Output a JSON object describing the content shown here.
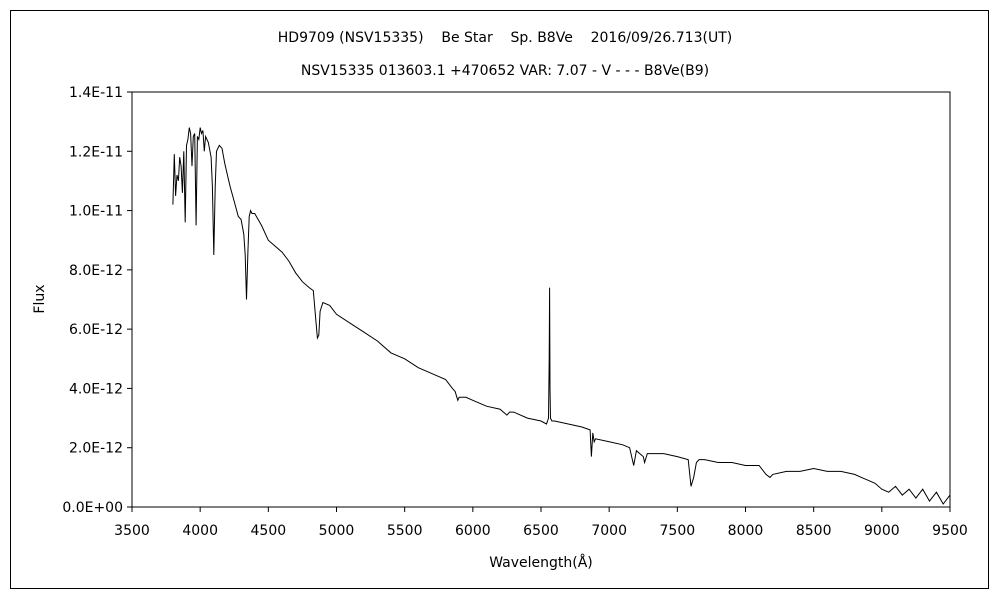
{
  "chart_data": {
    "type": "line",
    "title": "HD9709 (NSV15335)    Be Star    Sp. B8Ve    2016/09/26.713(UT)",
    "subtitle": "NSV15335 013603.1 +470652 VAR: 7.07 - V - - - B8Ve(B9)",
    "xlabel": "Wavelength(Å)",
    "ylabel": "Flux",
    "xlim": [
      3500,
      9500
    ],
    "ylim": [
      0,
      1.4e-11
    ],
    "xticks": [
      "3500",
      "4000",
      "4500",
      "5000",
      "5500",
      "6000",
      "6500",
      "7000",
      "7500",
      "8000",
      "8500",
      "9000",
      "9500"
    ],
    "yticks": [
      "0.0E+00",
      "2.0E-12",
      "4.0E-12",
      "6.0E-12",
      "8.0E-12",
      "1.0E-11",
      "1.2E-11",
      "1.4E-11"
    ],
    "grid": false,
    "series": [
      {
        "x": [
          3800,
          3810,
          3820,
          3830,
          3840,
          3850,
          3860,
          3870,
          3880,
          3890,
          3900,
          3910,
          3920,
          3930,
          3940,
          3950,
          3960,
          3970,
          3980,
          3990,
          4000,
          4010,
          4020,
          4030,
          4040,
          4060,
          4080,
          4090,
          4100,
          4110,
          4120,
          4140,
          4160,
          4180,
          4200,
          4220,
          4250,
          4280,
          4300,
          4320,
          4330,
          4340,
          4350,
          4360,
          4370,
          4380,
          4400,
          4450,
          4500,
          4550,
          4600,
          4650,
          4700,
          4750,
          4800,
          4830,
          4850,
          4860,
          4870,
          4880,
          4900,
          4950,
          5000,
          5100,
          5200,
          5300,
          5400,
          5500,
          5600,
          5700,
          5800,
          5850,
          5870,
          5890,
          5900,
          5950,
          6000,
          6100,
          6200,
          6250,
          6270,
          6300,
          6400,
          6500,
          6540,
          6555,
          6560,
          6563,
          6566,
          6570,
          6580,
          6600,
          6700,
          6800,
          6860,
          6870,
          6880,
          6890,
          6900,
          7000,
          7100,
          7150,
          7180,
          7200,
          7250,
          7260,
          7280,
          7300,
          7400,
          7500,
          7580,
          7600,
          7620,
          7640,
          7660,
          7700,
          7800,
          7900,
          8000,
          8100,
          8150,
          8180,
          8200,
          8300,
          8400,
          8500,
          8600,
          8700,
          8800,
          8850,
          8900,
          8950,
          9000,
          9050,
          9100,
          9150,
          9200,
          9250,
          9300,
          9350,
          9400,
          9450,
          9500
        ],
        "y": [
          1.02e-11,
          1.19e-11,
          1.05e-11,
          1.12e-11,
          1.1e-11,
          1.18e-11,
          1.15e-11,
          1.06e-11,
          1.2e-11,
          9.6e-12,
          1.22e-11,
          1.24e-11,
          1.28e-11,
          1.26e-11,
          1.15e-11,
          1.25e-11,
          1.26e-11,
          9.5e-12,
          1.25e-11,
          1.24e-11,
          1.28e-11,
          1.26e-11,
          1.27e-11,
          1.2e-11,
          1.25e-11,
          1.23e-11,
          1.18e-11,
          1.08e-11,
          8.5e-12,
          1.08e-11,
          1.2e-11,
          1.22e-11,
          1.21e-11,
          1.16e-11,
          1.12e-11,
          1.08e-11,
          1.03e-11,
          9.8e-12,
          9.7e-12,
          9.2e-12,
          8.5e-12,
          7e-12,
          8.6e-12,
          9.8e-12,
          1e-11,
          9.9e-12,
          9.9e-12,
          9.5e-12,
          9e-12,
          8.8e-12,
          8.6e-12,
          8.3e-12,
          7.9e-12,
          7.6e-12,
          7.4e-12,
          7.3e-12,
          6.2e-12,
          5.7e-12,
          5.8e-12,
          6.6e-12,
          6.9e-12,
          6.8e-12,
          6.5e-12,
          6.2e-12,
          5.9e-12,
          5.6e-12,
          5.2e-12,
          5e-12,
          4.7e-12,
          4.5e-12,
          4.3e-12,
          4e-12,
          3.9e-12,
          3.6e-12,
          3.7e-12,
          3.7e-12,
          3.6e-12,
          3.4e-12,
          3.3e-12,
          3.1e-12,
          3.2e-12,
          3.2e-12,
          3e-12,
          2.9e-12,
          2.8e-12,
          3e-12,
          5e-12,
          7.4e-12,
          4e-12,
          3e-12,
          2.9e-12,
          2.9e-12,
          2.8e-12,
          2.7e-12,
          2.6e-12,
          1.7e-12,
          2.5e-12,
          2.2e-12,
          2.3e-12,
          2.2e-12,
          2.1e-12,
          2e-12,
          1.4e-12,
          1.9e-12,
          1.7e-12,
          1.5e-12,
          1.8e-12,
          1.8e-12,
          1.8e-12,
          1.7e-12,
          1.6e-12,
          7e-13,
          1e-12,
          1.5e-12,
          1.6e-12,
          1.6e-12,
          1.5e-12,
          1.5e-12,
          1.4e-12,
          1.4e-12,
          1.1e-12,
          1e-12,
          1.1e-12,
          1.2e-12,
          1.2e-12,
          1.3e-12,
          1.2e-12,
          1.2e-12,
          1.1e-12,
          1e-12,
          9e-13,
          8e-13,
          6e-13,
          5e-13,
          7e-13,
          4e-13,
          6e-13,
          3e-13,
          6e-13,
          2e-13,
          5e-13,
          1e-13,
          4e-13
        ]
      }
    ]
  }
}
